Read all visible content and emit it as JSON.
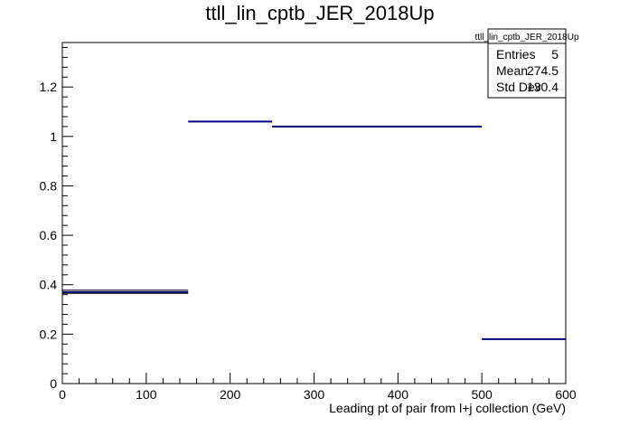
{
  "chart_data": {
    "type": "bar",
    "title": "ttll_lin_cptb_JER_2018Up",
    "xlabel": "Leading pt of pair from l+j collection (GeV)",
    "ylabel": "",
    "xlim": [
      0,
      600
    ],
    "ylim": [
      0,
      1.38
    ],
    "x_ticks": [
      0,
      100,
      200,
      300,
      400,
      500,
      600
    ],
    "y_ticks": [
      0,
      0.2,
      0.4,
      0.6,
      0.8,
      1,
      1.2
    ],
    "bins": [
      {
        "x_low": 0,
        "x_high": 150,
        "value": 0.37
      },
      {
        "x_low": 150,
        "x_high": 250,
        "value": 1.06
      },
      {
        "x_low": 250,
        "x_high": 500,
        "value": 1.04
      },
      {
        "x_low": 500,
        "x_high": 600,
        "value": 0.18
      }
    ],
    "errors": [
      {
        "x_low": 0,
        "x_high": 150,
        "low": 0.365,
        "high": 0.378
      }
    ],
    "color": "#000080",
    "grid": false,
    "legend": "none"
  },
  "stats": {
    "name": "ttll_lin_cptb_JER_2018Up",
    "rows": [
      {
        "label": "Entries",
        "value": "5"
      },
      {
        "label": "Mean",
        "value": "274.5"
      },
      {
        "label": "Std Dev",
        "value": "130.4"
      }
    ]
  }
}
